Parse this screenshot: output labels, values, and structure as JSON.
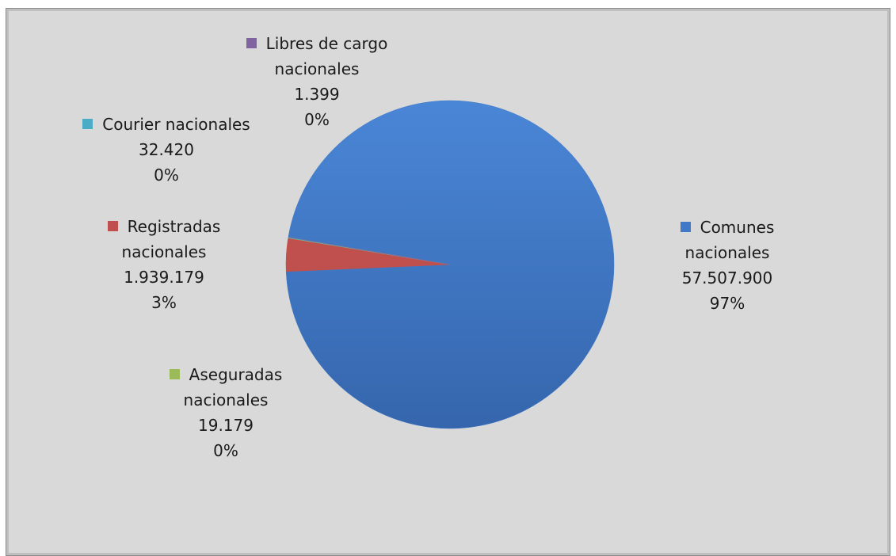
{
  "chart_data": {
    "type": "pie",
    "categories": [
      "Comunes nacionales",
      "Registradas nacionales",
      "Aseguradas nacionales",
      "Courier nacionales",
      "Libres de cargo nacionales"
    ],
    "values": [
      57507900,
      1939179,
      19179,
      32420,
      1399
    ],
    "value_labels": [
      "57.507.900",
      "1.939.179",
      "19.179",
      "32.420",
      "1.399"
    ],
    "percents": [
      97,
      3,
      0,
      0,
      0
    ],
    "percent_labels": [
      "97%",
      "3%",
      "0%",
      "0%",
      "0%"
    ],
    "colors": [
      "#3f79c8",
      "#c0504d",
      "#9bbb59",
      "#4bacc6",
      "#8064a2"
    ]
  }
}
